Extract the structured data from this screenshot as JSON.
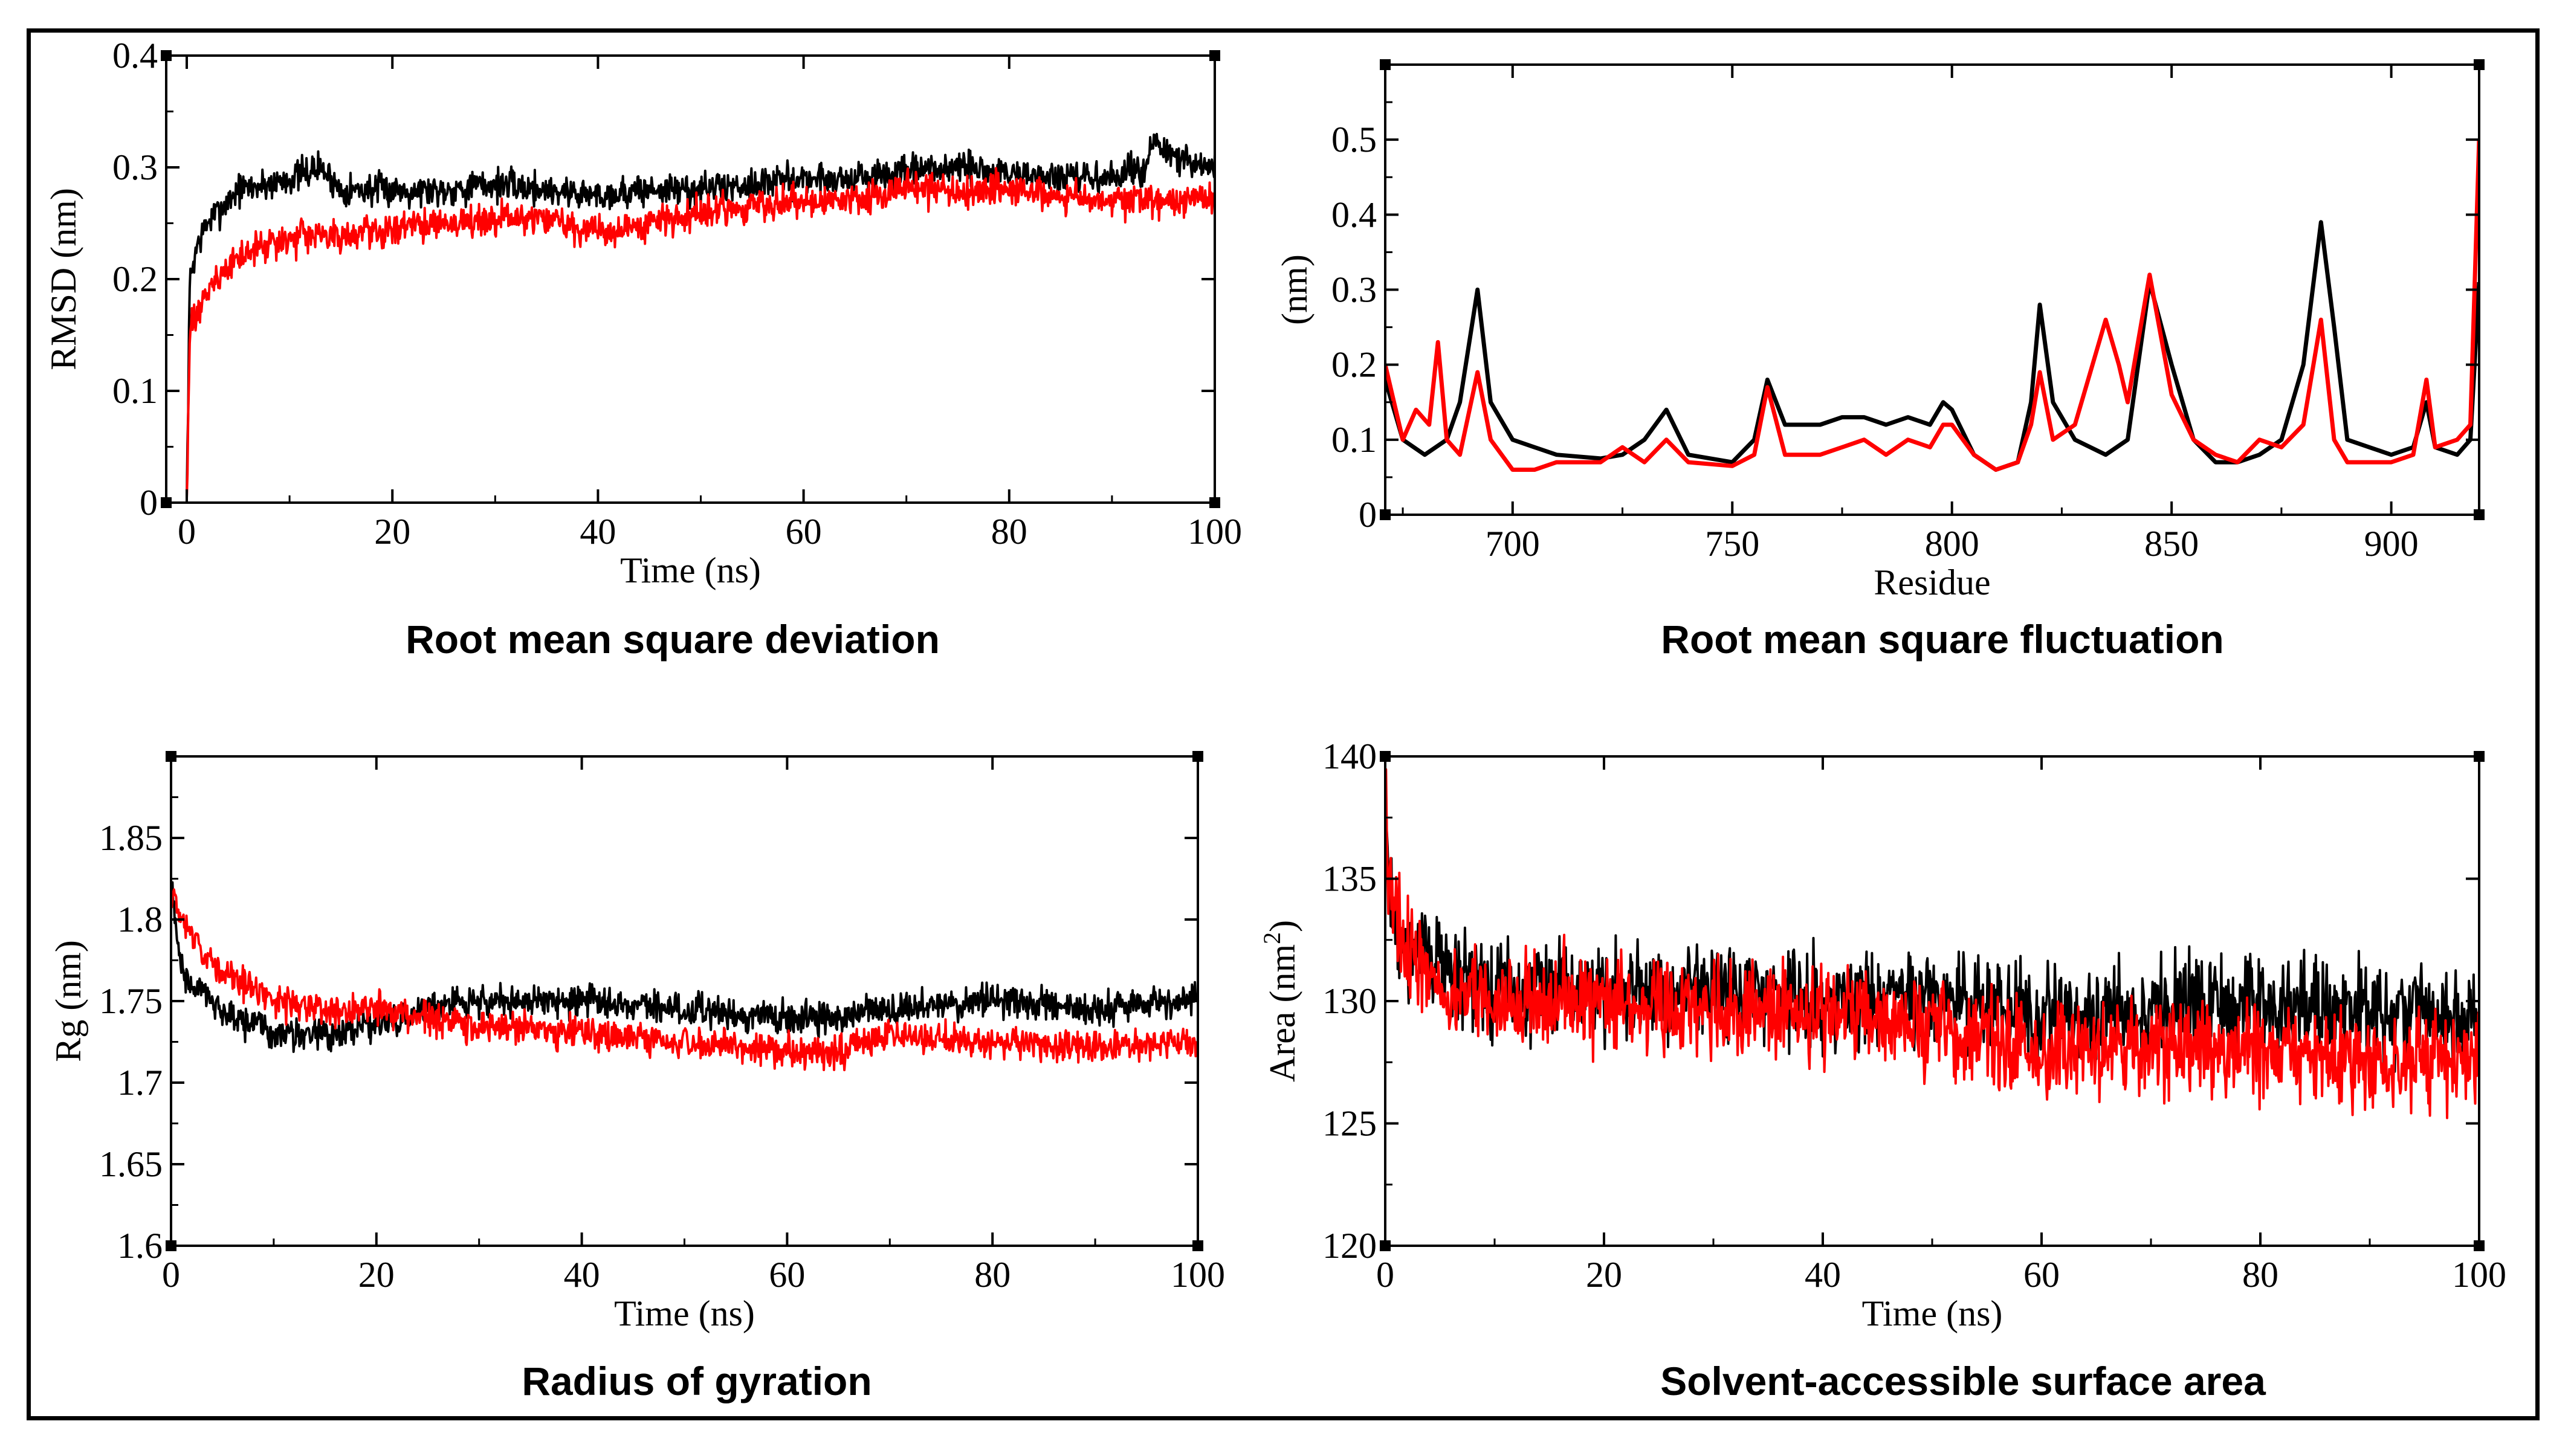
{
  "colors": {
    "series_black": "#000000",
    "series_red": "#ff0000",
    "frame": "#000000"
  },
  "chart_data": [
    {
      "id": "rmsd",
      "type": "line",
      "caption": "Root mean square deviation",
      "xlabel": "Time (ns)",
      "ylabel": "RMSD (nm)",
      "xlim": [
        -2,
        100
      ],
      "ylim": [
        0,
        0.4
      ],
      "xticks": [
        0,
        20,
        40,
        60,
        80,
        100
      ],
      "yticks": [
        0,
        0.1,
        0.2,
        0.3,
        0.4
      ],
      "ytick_labels": [
        "0",
        "0.1",
        "0.2",
        "0.3",
        "0.4"
      ],
      "series": [
        {
          "color": "#000000",
          "noise": 0.012,
          "x": [
            0,
            0.3,
            1,
            2,
            3,
            5,
            8,
            10,
            13,
            15,
            20,
            25,
            30,
            35,
            40,
            45,
            50,
            55,
            60,
            65,
            70,
            75,
            80,
            85,
            90,
            93,
            94,
            96,
            98,
            100
          ],
          "y": [
            0.0,
            0.2,
            0.23,
            0.25,
            0.26,
            0.28,
            0.285,
            0.29,
            0.3,
            0.28,
            0.28,
            0.28,
            0.285,
            0.28,
            0.275,
            0.28,
            0.28,
            0.285,
            0.29,
            0.29,
            0.295,
            0.3,
            0.295,
            0.29,
            0.29,
            0.3,
            0.32,
            0.31,
            0.3,
            0.3
          ]
        },
        {
          "color": "#ff0000",
          "noise": 0.012,
          "x": [
            0,
            0.3,
            1,
            2,
            3,
            5,
            8,
            10,
            15,
            20,
            25,
            30,
            35,
            40,
            45,
            50,
            55,
            60,
            65,
            70,
            75,
            80,
            85,
            90,
            95,
            100
          ],
          "y": [
            0.0,
            0.15,
            0.17,
            0.19,
            0.2,
            0.22,
            0.23,
            0.235,
            0.24,
            0.245,
            0.25,
            0.255,
            0.255,
            0.24,
            0.25,
            0.26,
            0.265,
            0.27,
            0.27,
            0.28,
            0.28,
            0.28,
            0.275,
            0.27,
            0.27,
            0.27
          ]
        }
      ]
    },
    {
      "id": "rmsf",
      "type": "line",
      "caption": "Root mean square fluctuation",
      "xlabel": "Residue",
      "ylabel": "(nm)",
      "xlim": [
        671,
        920
      ],
      "ylim": [
        0,
        0.6
      ],
      "xticks": [
        700,
        750,
        800,
        850,
        900
      ],
      "yticks": [
        0,
        0.1,
        0.2,
        0.3,
        0.4,
        0.5
      ],
      "ytick_labels": [
        "0",
        "0.1",
        "0.2",
        "0.3",
        "0.4",
        "0.5"
      ],
      "series": [
        {
          "color": "#000000",
          "noise": 0,
          "x": [
            671,
            675,
            680,
            685,
            688,
            692,
            695,
            700,
            705,
            710,
            720,
            725,
            730,
            735,
            740,
            750,
            755,
            758,
            762,
            765,
            770,
            775,
            780,
            785,
            790,
            795,
            798,
            800,
            805,
            810,
            815,
            818,
            820,
            823,
            828,
            835,
            840,
            845,
            850,
            855,
            860,
            865,
            870,
            875,
            880,
            884,
            887,
            890,
            895,
            900,
            905,
            908,
            910,
            915,
            918,
            920
          ],
          "y": [
            0.18,
            0.1,
            0.08,
            0.1,
            0.15,
            0.3,
            0.15,
            0.1,
            0.09,
            0.08,
            0.075,
            0.08,
            0.1,
            0.14,
            0.08,
            0.07,
            0.1,
            0.18,
            0.12,
            0.12,
            0.12,
            0.13,
            0.13,
            0.12,
            0.13,
            0.12,
            0.15,
            0.14,
            0.08,
            0.06,
            0.07,
            0.15,
            0.28,
            0.15,
            0.1,
            0.08,
            0.1,
            0.31,
            0.2,
            0.1,
            0.07,
            0.07,
            0.08,
            0.1,
            0.2,
            0.39,
            0.25,
            0.1,
            0.09,
            0.08,
            0.09,
            0.15,
            0.09,
            0.08,
            0.1,
            0.31
          ]
        },
        {
          "color": "#ff0000",
          "noise": 0,
          "x": [
            671,
            675,
            678,
            681,
            683,
            685,
            688,
            692,
            695,
            700,
            705,
            710,
            720,
            725,
            730,
            735,
            740,
            750,
            755,
            758,
            762,
            765,
            770,
            775,
            780,
            785,
            790,
            795,
            798,
            800,
            805,
            810,
            815,
            818,
            820,
            823,
            828,
            832,
            835,
            838,
            840,
            845,
            850,
            855,
            860,
            865,
            870,
            875,
            880,
            884,
            887,
            890,
            895,
            900,
            905,
            908,
            910,
            915,
            918,
            920
          ],
          "y": [
            0.2,
            0.1,
            0.14,
            0.12,
            0.23,
            0.1,
            0.08,
            0.19,
            0.1,
            0.06,
            0.06,
            0.07,
            0.07,
            0.09,
            0.07,
            0.1,
            0.07,
            0.065,
            0.08,
            0.17,
            0.08,
            0.08,
            0.08,
            0.09,
            0.1,
            0.08,
            0.1,
            0.09,
            0.12,
            0.12,
            0.08,
            0.06,
            0.07,
            0.12,
            0.19,
            0.1,
            0.12,
            0.2,
            0.26,
            0.2,
            0.15,
            0.32,
            0.16,
            0.1,
            0.08,
            0.07,
            0.1,
            0.09,
            0.12,
            0.26,
            0.1,
            0.07,
            0.07,
            0.07,
            0.08,
            0.18,
            0.09,
            0.1,
            0.12,
            0.5
          ]
        }
      ]
    },
    {
      "id": "rg",
      "type": "line",
      "caption": "Radius of gyration",
      "xlabel": "Time (ns)",
      "ylabel": "Rg (nm)",
      "xlim": [
        0,
        100
      ],
      "ylim": [
        1.6,
        1.9
      ],
      "xticks": [
        0,
        20,
        40,
        60,
        80,
        100
      ],
      "yticks": [
        1.6,
        1.65,
        1.7,
        1.75,
        1.8,
        1.85
      ],
      "ytick_labels": [
        "1.6",
        "1.65",
        "1.7",
        "1.75",
        "1.8",
        "1.85"
      ],
      "series": [
        {
          "color": "#000000",
          "noise": 0.008,
          "x": [
            0,
            1,
            2,
            4,
            6,
            10,
            15,
            20,
            25,
            30,
            40,
            50,
            60,
            65,
            70,
            80,
            90,
            100
          ],
          "y": [
            1.82,
            1.77,
            1.76,
            1.75,
            1.74,
            1.73,
            1.73,
            1.735,
            1.745,
            1.75,
            1.75,
            1.745,
            1.74,
            1.74,
            1.745,
            1.75,
            1.745,
            1.75
          ]
        },
        {
          "color": "#ff0000",
          "noise": 0.008,
          "x": [
            0,
            1,
            2,
            4,
            6,
            10,
            15,
            20,
            25,
            30,
            40,
            50,
            60,
            65,
            70,
            80,
            90,
            100
          ],
          "y": [
            1.82,
            1.8,
            1.79,
            1.775,
            1.765,
            1.75,
            1.745,
            1.745,
            1.74,
            1.735,
            1.73,
            1.725,
            1.72,
            1.72,
            1.73,
            1.725,
            1.72,
            1.725
          ]
        }
      ]
    },
    {
      "id": "sasa",
      "type": "line",
      "caption": "Solvent-accessible surface area",
      "xlabel": "Time (ns)",
      "ylabel": "Area (nm",
      "ylabel_sup": "2",
      "ylabel_end": ")",
      "xlim": [
        0,
        100
      ],
      "ylim": [
        120,
        140
      ],
      "xticks": [
        0,
        20,
        40,
        60,
        80,
        100
      ],
      "yticks": [
        120,
        125,
        130,
        135,
        140
      ],
      "ytick_labels": [
        "120",
        "125",
        "130",
        "135",
        "140"
      ],
      "series": [
        {
          "color": "#000000",
          "noise": 1.6,
          "x": [
            0,
            0.5,
            2,
            5,
            10,
            20,
            30,
            40,
            50,
            60,
            70,
            80,
            90,
            100
          ],
          "y": [
            138,
            134,
            132,
            131.5,
            130.5,
            130.5,
            130.5,
            130,
            130,
            129.5,
            129.5,
            130,
            129.5,
            129.5
          ]
        },
        {
          "color": "#ff0000",
          "noise": 1.6,
          "x": [
            0,
            0.5,
            2,
            5,
            10,
            20,
            30,
            40,
            50,
            60,
            70,
            80,
            90,
            100
          ],
          "y": [
            139,
            134,
            132,
            130.5,
            130,
            130,
            129.5,
            129.5,
            129,
            128,
            128,
            128,
            127.5,
            127.5
          ]
        }
      ]
    }
  ]
}
